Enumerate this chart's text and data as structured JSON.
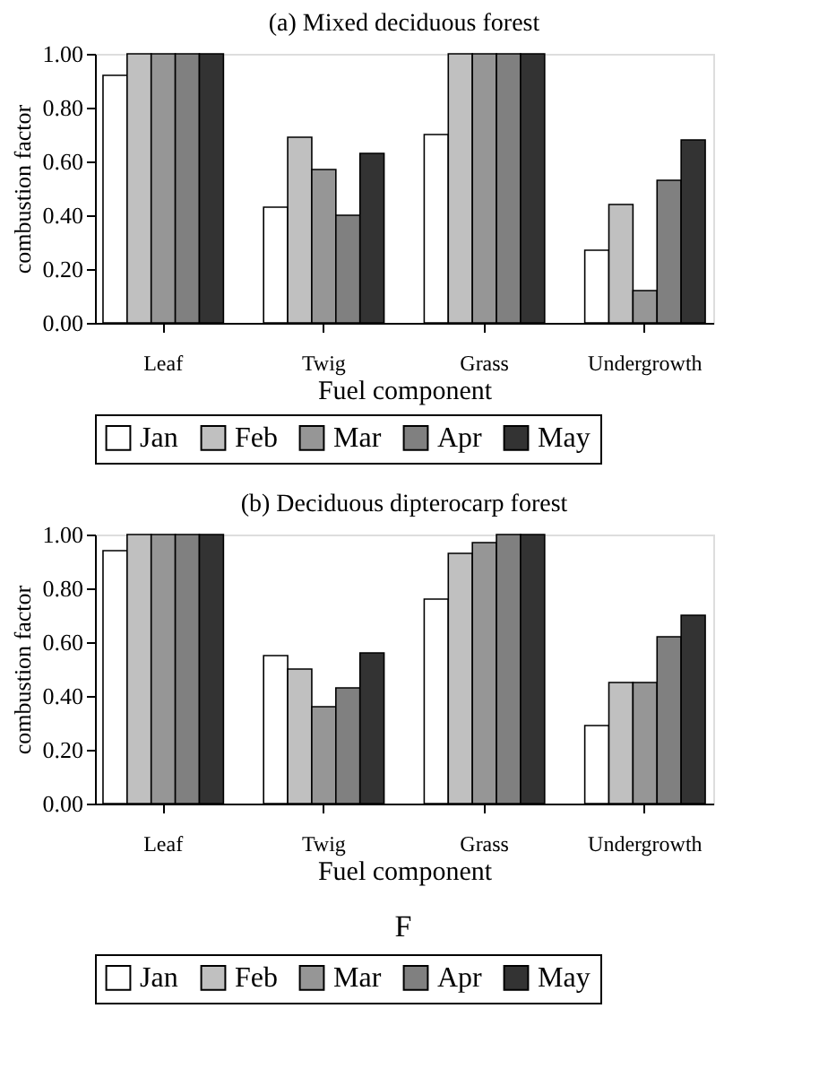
{
  "chart_data": [
    {
      "type": "bar",
      "title": "(a) Mixed deciduous forest",
      "xlabel": "Fuel component",
      "ylabel": "combustion factor",
      "categories": [
        "Leaf",
        "Twig",
        "Grass",
        "Undergrowth"
      ],
      "series": [
        {
          "name": "Jan",
          "color": "#ffffff",
          "values": [
            0.92,
            0.43,
            0.7,
            0.27
          ]
        },
        {
          "name": "Feb",
          "color": "#c0c0c0",
          "values": [
            1.0,
            0.69,
            1.0,
            0.44
          ]
        },
        {
          "name": "Mar",
          "color": "#969696",
          "values": [
            1.0,
            0.57,
            1.0,
            0.12
          ]
        },
        {
          "name": "Apr",
          "color": "#808080",
          "values": [
            1.0,
            0.4,
            1.0,
            0.53
          ]
        },
        {
          "name": "May",
          "color": "#333333",
          "values": [
            1.0,
            0.63,
            1.0,
            0.68
          ]
        }
      ],
      "ylim": [
        0,
        1
      ],
      "yticks": [
        {
          "value": 0,
          "label": "0.00"
        },
        {
          "value": 0.2,
          "label": "0.20"
        },
        {
          "value": 0.4,
          "label": "0.40"
        },
        {
          "value": 0.6,
          "label": "0.60"
        },
        {
          "value": 0.8,
          "label": "0.80"
        },
        {
          "value": 1,
          "label": "1.00"
        }
      ],
      "grid": false,
      "legend": "bottom"
    },
    {
      "type": "bar",
      "title": "(b) Deciduous dipterocarp forest",
      "xlabel": "Fuel component",
      "ylabel": "combustion factor",
      "categories": [
        "Leaf",
        "Twig",
        "Grass",
        "Undergrowth"
      ],
      "series": [
        {
          "name": "Jan",
          "color": "#ffffff",
          "values": [
            0.94,
            0.55,
            0.76,
            0.29
          ]
        },
        {
          "name": "Feb",
          "color": "#c0c0c0",
          "values": [
            1.0,
            0.5,
            0.93,
            0.45
          ]
        },
        {
          "name": "Mar",
          "color": "#969696",
          "values": [
            1.0,
            0.36,
            0.97,
            0.45
          ]
        },
        {
          "name": "Apr",
          "color": "#808080",
          "values": [
            1.0,
            0.43,
            1.0,
            0.62
          ]
        },
        {
          "name": "May",
          "color": "#333333",
          "values": [
            1.0,
            0.56,
            1.0,
            0.7
          ]
        }
      ],
      "ylim": [
        0,
        1
      ],
      "yticks": [
        {
          "value": 0,
          "label": "0.00"
        },
        {
          "value": 0.2,
          "label": "0.20"
        },
        {
          "value": 0.4,
          "label": "0.40"
        },
        {
          "value": 0.6,
          "label": "0.60"
        },
        {
          "value": 0.8,
          "label": "0.80"
        },
        {
          "value": 1,
          "label": "1.00"
        }
      ],
      "grid": false,
      "legend": "bottom",
      "annotations": [
        "F"
      ]
    }
  ]
}
